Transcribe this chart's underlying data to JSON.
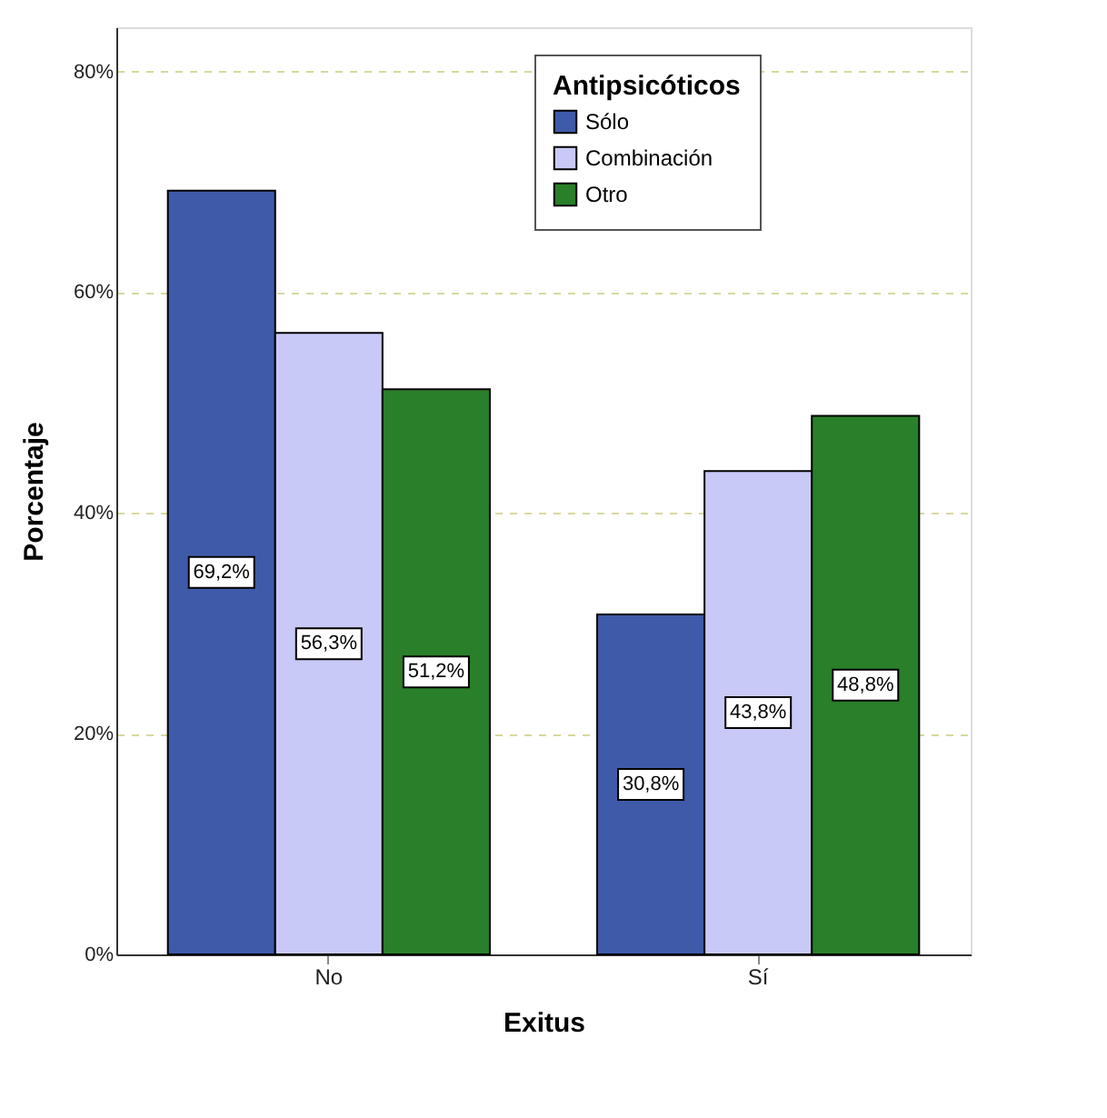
{
  "chart_data": {
    "type": "bar",
    "xlabel": "Exitus",
    "ylabel": "Porcentaje",
    "legend_title": "Antipsicóticos",
    "categories": [
      "No",
      "Sí"
    ],
    "series": [
      {
        "name": "Sólo",
        "color": "#3f5aa8",
        "values": [
          69.2,
          30.8
        ],
        "value_labels": [
          "69,2%",
          "30,8%"
        ]
      },
      {
        "name": "Combinación",
        "color": "#c9c9f7",
        "values": [
          56.3,
          43.8
        ],
        "value_labels": [
          "56,3%",
          "43,8%"
        ]
      },
      {
        "name": "Otro",
        "color": "#2a7f2a",
        "values": [
          51.2,
          48.8
        ],
        "value_labels": [
          "51,2%",
          "48,8%"
        ]
      }
    ],
    "ylim": [
      0,
      84
    ],
    "yticks": [
      {
        "value": 0,
        "label": "0%"
      },
      {
        "value": 20,
        "label": "20%"
      },
      {
        "value": 40,
        "label": "40%"
      },
      {
        "value": 60,
        "label": "60%"
      },
      {
        "value": 80,
        "label": "80%"
      }
    ],
    "grid": "y",
    "legend": "top right"
  }
}
